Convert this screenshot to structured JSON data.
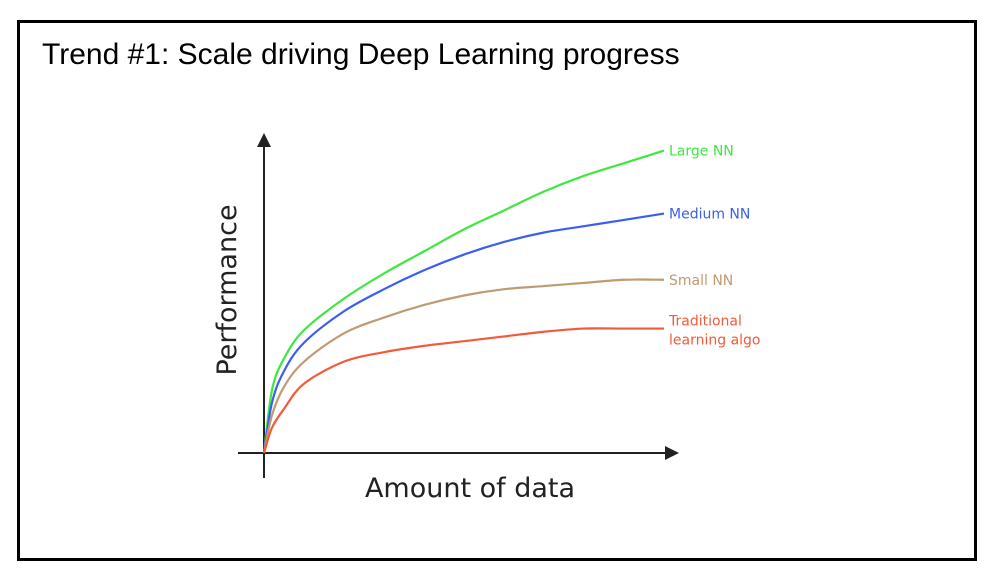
{
  "slide": {
    "title": "Trend #1: Scale driving Deep Learning progress"
  },
  "chart_data": {
    "type": "line",
    "xlabel": "Amount of data",
    "ylabel": "Performance",
    "xlim": [
      0,
      1
    ],
    "ylim": [
      0,
      1
    ],
    "grid": false,
    "legend": "inline-right",
    "series": [
      {
        "name": "Large NN",
        "label_lines": [
          "Large NN"
        ],
        "color": "#3ee83e",
        "x": [
          0,
          0.02,
          0.05,
          0.1,
          0.2,
          0.3,
          0.4,
          0.5,
          0.6,
          0.7,
          0.8,
          0.9,
          1.0
        ],
        "y": [
          0,
          0.2,
          0.3,
          0.39,
          0.49,
          0.57,
          0.64,
          0.71,
          0.77,
          0.83,
          0.88,
          0.92,
          0.96
        ]
      },
      {
        "name": "Medium NN",
        "label_lines": [
          "Medium NN"
        ],
        "color": "#3b5ef0",
        "x": [
          0,
          0.02,
          0.05,
          0.1,
          0.2,
          0.3,
          0.4,
          0.5,
          0.6,
          0.7,
          0.8,
          0.9,
          1.0
        ],
        "y": [
          0,
          0.16,
          0.26,
          0.35,
          0.45,
          0.52,
          0.58,
          0.63,
          0.67,
          0.7,
          0.72,
          0.74,
          0.76
        ]
      },
      {
        "name": "Small NN",
        "label_lines": [
          "Small NN"
        ],
        "color": "#c09a72",
        "x": [
          0,
          0.02,
          0.05,
          0.1,
          0.2,
          0.3,
          0.4,
          0.5,
          0.6,
          0.7,
          0.8,
          0.9,
          1.0
        ],
        "y": [
          0,
          0.12,
          0.21,
          0.29,
          0.38,
          0.43,
          0.47,
          0.5,
          0.52,
          0.53,
          0.54,
          0.55,
          0.55
        ]
      },
      {
        "name": "Traditional learning algo",
        "label_lines": [
          "Traditional",
          "learning algo"
        ],
        "color": "#f25a3c",
        "x": [
          0,
          0.02,
          0.05,
          0.1,
          0.2,
          0.3,
          0.4,
          0.5,
          0.6,
          0.7,
          0.8,
          0.9,
          1.0
        ],
        "y": [
          0,
          0.08,
          0.14,
          0.22,
          0.29,
          0.32,
          0.34,
          0.355,
          0.37,
          0.385,
          0.395,
          0.395,
          0.395
        ]
      }
    ]
  }
}
